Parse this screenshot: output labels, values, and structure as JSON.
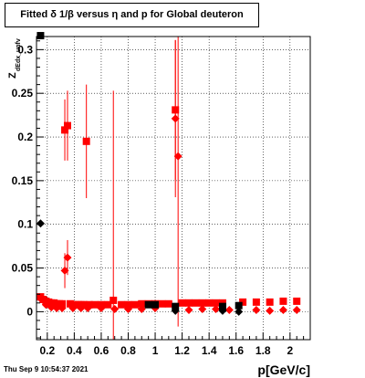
{
  "chart_data": {
    "type": "scatter",
    "title": "Fitted δ 1/β versus η and p for Global deuteron",
    "xlabel": "p[GeV/c]",
    "ylabel": "Z",
    "ylabel_sub": "dEdx_unfv",
    "xlim": [
      0.12,
      2.15
    ],
    "ylim": [
      -0.032,
      0.315
    ],
    "x_ticks": [
      "0.2",
      "0.4",
      "0.6",
      "0.8",
      "1",
      "1.2",
      "1.4",
      "1.6",
      "1.8",
      "2"
    ],
    "x_tick_values": [
      0.2,
      0.4,
      0.6,
      0.8,
      1.0,
      1.2,
      1.4,
      1.6,
      1.8,
      2.0
    ],
    "y_ticks": [
      "0",
      "0.05",
      "0.1",
      "0.15",
      "0.2",
      "0.25",
      "0.3"
    ],
    "y_tick_values": [
      0,
      0.05,
      0.1,
      0.15,
      0.2,
      0.25,
      0.3
    ],
    "grid": true,
    "colors": {
      "red": "#ff0000",
      "black": "#000000"
    },
    "series": [
      {
        "marker": "square",
        "color": "#ff0000",
        "points": [
          {
            "x": 0.15,
            "y": 0.017
          },
          {
            "x": 0.17,
            "y": 0.014
          },
          {
            "x": 0.19,
            "y": 0.012
          },
          {
            "x": 0.21,
            "y": 0.011
          },
          {
            "x": 0.23,
            "y": 0.01
          },
          {
            "x": 0.25,
            "y": 0.01
          },
          {
            "x": 0.27,
            "y": 0.009
          },
          {
            "x": 0.29,
            "y": 0.009
          },
          {
            "x": 0.31,
            "y": 0.009
          },
          {
            "x": 0.33,
            "y": 0.208,
            "err": 0.035
          },
          {
            "x": 0.35,
            "y": 0.213,
            "err": 0.04
          },
          {
            "x": 0.37,
            "y": 0.009
          },
          {
            "x": 0.39,
            "y": 0.008
          },
          {
            "x": 0.41,
            "y": 0.008
          },
          {
            "x": 0.43,
            "y": 0.008
          },
          {
            "x": 0.45,
            "y": 0.008
          },
          {
            "x": 0.47,
            "y": 0.008
          },
          {
            "x": 0.49,
            "y": 0.195,
            "err": 0.065
          },
          {
            "x": 0.51,
            "y": 0.008
          },
          {
            "x": 0.55,
            "y": 0.008
          },
          {
            "x": 0.6,
            "y": 0.008
          },
          {
            "x": 0.65,
            "y": 0.008
          },
          {
            "x": 0.69,
            "y": 0.013,
            "err": 0.24
          },
          {
            "x": 0.75,
            "y": 0.008
          },
          {
            "x": 0.8,
            "y": 0.008
          },
          {
            "x": 0.85,
            "y": 0.008
          },
          {
            "x": 0.9,
            "y": 0.009
          },
          {
            "x": 0.95,
            "y": 0.009
          },
          {
            "x": 1.0,
            "y": 0.009
          },
          {
            "x": 1.05,
            "y": 0.009
          },
          {
            "x": 1.1,
            "y": 0.009
          },
          {
            "x": 1.15,
            "y": 0.231,
            "err": 0.08
          },
          {
            "x": 1.2,
            "y": 0.01
          },
          {
            "x": 1.25,
            "y": 0.01
          },
          {
            "x": 1.3,
            "y": 0.01
          },
          {
            "x": 1.35,
            "y": 0.01
          },
          {
            "x": 1.4,
            "y": 0.01
          },
          {
            "x": 1.45,
            "y": 0.01
          },
          {
            "x": 1.5,
            "y": 0.01
          },
          {
            "x": 1.65,
            "y": 0.011
          },
          {
            "x": 1.75,
            "y": 0.011
          },
          {
            "x": 1.85,
            "y": 0.011
          },
          {
            "x": 1.95,
            "y": 0.012
          },
          {
            "x": 2.05,
            "y": 0.012
          }
        ]
      },
      {
        "marker": "diamond",
        "color": "#ff0000",
        "points": [
          {
            "x": 0.15,
            "y": 0.015
          },
          {
            "x": 0.19,
            "y": 0.008
          },
          {
            "x": 0.23,
            "y": 0.005
          },
          {
            "x": 0.27,
            "y": 0.004
          },
          {
            "x": 0.31,
            "y": 0.004
          },
          {
            "x": 0.33,
            "y": 0.047,
            "err": 0.02
          },
          {
            "x": 0.35,
            "y": 0.062,
            "err": 0.02
          },
          {
            "x": 0.39,
            "y": 0.004
          },
          {
            "x": 0.45,
            "y": 0.004
          },
          {
            "x": 0.5,
            "y": 0.004
          },
          {
            "x": 0.6,
            "y": 0.004
          },
          {
            "x": 0.7,
            "y": 0.003
          },
          {
            "x": 0.8,
            "y": 0.003
          },
          {
            "x": 0.9,
            "y": 0.003
          },
          {
            "x": 1.0,
            "y": 0.004
          },
          {
            "x": 1.15,
            "y": 0.221,
            "err": 0.09
          },
          {
            "x": 1.17,
            "y": 0.178,
            "err": 0.195
          },
          {
            "x": 1.25,
            "y": 0.002
          },
          {
            "x": 1.35,
            "y": 0.003
          },
          {
            "x": 1.45,
            "y": 0.003
          },
          {
            "x": 1.55,
            "y": 0.002
          },
          {
            "x": 1.75,
            "y": 0.002
          },
          {
            "x": 1.85,
            "y": 0.001
          },
          {
            "x": 1.95,
            "y": 0.002
          },
          {
            "x": 2.05,
            "y": 0.002
          }
        ]
      },
      {
        "marker": "square",
        "color": "#000000",
        "points": [
          {
            "x": 0.15,
            "y": 0.316
          },
          {
            "x": 0.95,
            "y": 0.008
          },
          {
            "x": 1.0,
            "y": 0.008
          },
          {
            "x": 1.15,
            "y": 0.006
          },
          {
            "x": 1.5,
            "y": 0.006
          },
          {
            "x": 1.62,
            "y": 0.007
          }
        ]
      },
      {
        "marker": "diamond",
        "color": "#000000",
        "points": [
          {
            "x": 0.15,
            "y": 0.101
          },
          {
            "x": 1.15,
            "y": 0.001
          },
          {
            "x": 1.5,
            "y": 0.001
          },
          {
            "x": 1.62,
            "y": 0.0
          }
        ]
      }
    ]
  },
  "footer": {
    "timestamp": "Thu Sep  9 10:54:37 2021"
  }
}
